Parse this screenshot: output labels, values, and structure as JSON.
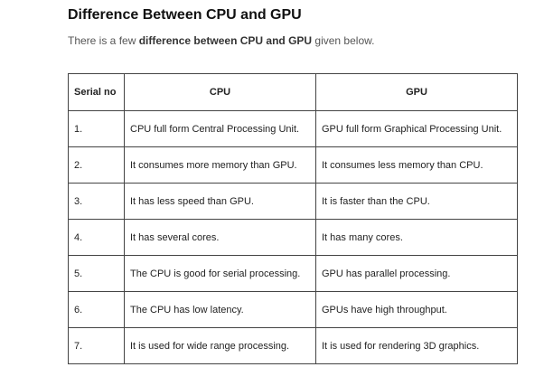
{
  "heading": "Difference Between CPU and GPU",
  "intro": {
    "prefix": "There is a few ",
    "bold": "difference between CPU and GPU",
    "suffix": " given below."
  },
  "table": {
    "headers": [
      "Serial no",
      "CPU",
      "GPU"
    ],
    "rows": [
      [
        "1.",
        "CPU full form Central Processing Unit.",
        "GPU full form Graphical Processing Unit."
      ],
      [
        "2.",
        "It consumes more memory than GPU.",
        "It consumes less memory than CPU."
      ],
      [
        "3.",
        "It has less speed than GPU.",
        "It is faster than the CPU."
      ],
      [
        "4.",
        "It has several cores.",
        "It has many cores."
      ],
      [
        "5.",
        "The CPU is good for serial processing.",
        "GPU has parallel processing."
      ],
      [
        "6.",
        "The CPU has low latency.",
        "GPUs have high throughput."
      ],
      [
        "7.",
        "It is used for wide range processing.",
        "It is used for rendering 3D graphics."
      ]
    ]
  }
}
